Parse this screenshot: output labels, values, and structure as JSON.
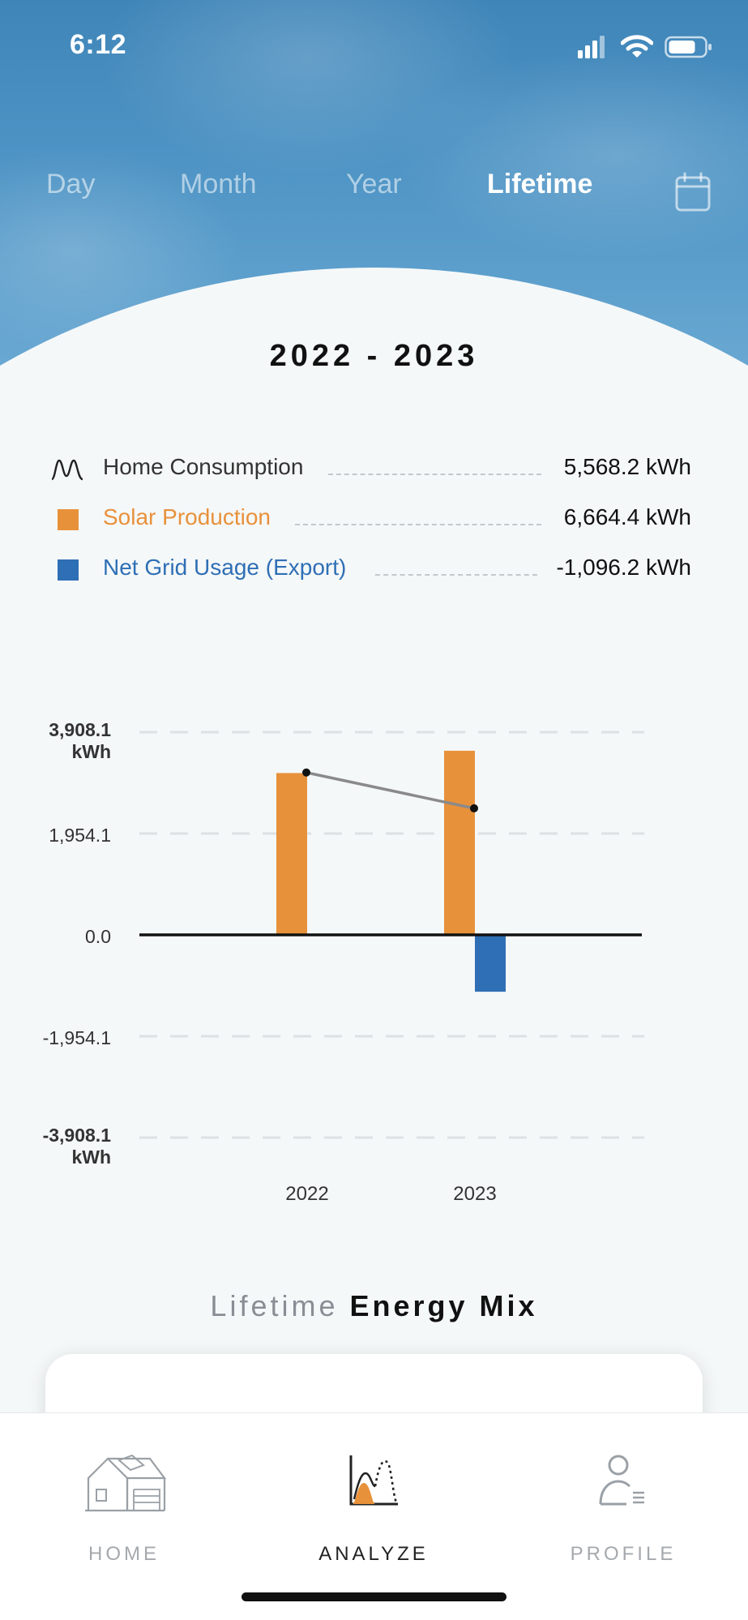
{
  "status_bar": {
    "time": "6:12"
  },
  "tabs": [
    {
      "label": "Day",
      "active": false
    },
    {
      "label": "Month",
      "active": false
    },
    {
      "label": "Year",
      "active": false
    },
    {
      "label": "Lifetime",
      "active": true
    }
  ],
  "date_range": "2022 - 2023",
  "legend": [
    {
      "icon": "consumption-wave-icon",
      "label": "Home Consumption",
      "value": "5,568.2 kWh",
      "color": "#333333"
    },
    {
      "icon": "solar-swatch",
      "label": "Solar Production",
      "value": "6,664.4 kWh",
      "color": "#e8913b"
    },
    {
      "icon": "grid-swatch",
      "label": "Net Grid Usage (Export)",
      "value": "-1,096.2 kWh",
      "color": "#2f6fb5"
    }
  ],
  "chart_data": {
    "type": "bar",
    "categories": [
      "2022",
      "2023"
    ],
    "series": [
      {
        "name": "Solar Production",
        "type": "bar",
        "color": "#e8913b",
        "values": [
          3120,
          3550
        ]
      },
      {
        "name": "Net Grid Usage (Export)",
        "type": "bar",
        "color": "#2f6fb5",
        "values": [
          0,
          -1096.2
        ]
      },
      {
        "name": "Home Consumption",
        "type": "line",
        "color": "#8a8a8a",
        "values": [
          3130,
          2440
        ]
      }
    ],
    "y_ticks": [
      {
        "value": 3908.1,
        "label": "3,908.1",
        "unit": "kWh",
        "bold": true
      },
      {
        "value": 1954.1,
        "label": "1,954.1",
        "bold": false
      },
      {
        "value": 0,
        "label": "0.0",
        "bold": false
      },
      {
        "value": -1954.1,
        "label": "-1,954.1",
        "bold": false
      },
      {
        "value": -3908.1,
        "label": "-3,908.1",
        "unit": "kWh",
        "bold": true
      }
    ],
    "ylim": [
      -3908.1,
      3908.1
    ],
    "grid": true
  },
  "energy_mix": {
    "prefix": "Lifetime",
    "title": "Energy Mix"
  },
  "nav": [
    {
      "label": "HOME",
      "icon": "house-icon",
      "active": false
    },
    {
      "label": "ANALYZE",
      "icon": "analyze-chart-icon",
      "active": true
    },
    {
      "label": "PROFILE",
      "icon": "profile-icon",
      "active": false
    }
  ],
  "colors": {
    "sky": "#4d93c4",
    "solar": "#e8913b",
    "grid": "#2f6fb5",
    "background": "#f5f8f9"
  }
}
